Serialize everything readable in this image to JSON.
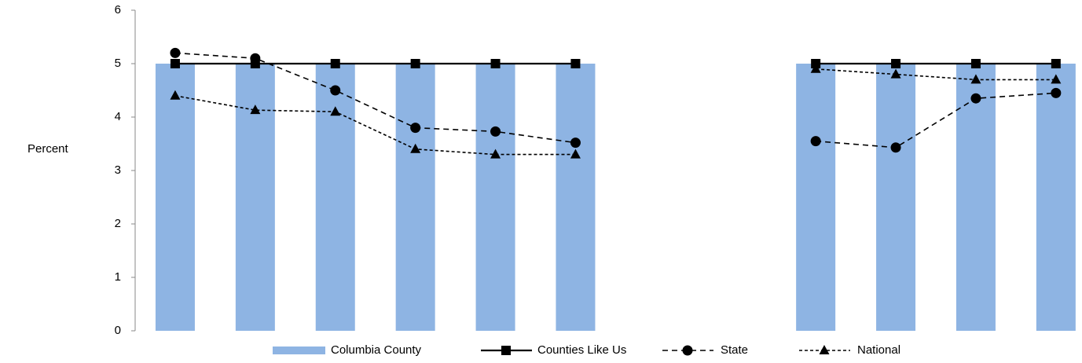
{
  "chart_data": {
    "type": "bar-line",
    "y_label": "Percent",
    "categories": [
      null,
      null,
      null,
      null,
      null,
      null,
      null,
      null,
      null,
      null,
      null,
      null
    ],
    "series": [
      {
        "name": "Columbia County",
        "type": "bar",
        "color": "#8eb4e3",
        "values": [
          5,
          5,
          5,
          5,
          5,
          5,
          null,
          null,
          5,
          5,
          5,
          5
        ]
      },
      {
        "name": "Counties Like Us",
        "type": "line",
        "color": "#000000",
        "dash": "solid",
        "marker": "square",
        "values": [
          5,
          5,
          5,
          5,
          5,
          5,
          null,
          null,
          5,
          5,
          5,
          5
        ]
      },
      {
        "name": "State",
        "type": "line",
        "color": "#000000",
        "dash": "dashed",
        "marker": "circle",
        "values": [
          5.2,
          5.1,
          4.5,
          3.8,
          3.73,
          3.52,
          null,
          null,
          3.55,
          3.43,
          4.35,
          4.45
        ]
      },
      {
        "name": "National",
        "type": "line",
        "color": "#000000",
        "dash": "dotted",
        "marker": "triangle",
        "values": [
          4.4,
          4.13,
          4.1,
          3.4,
          3.3,
          3.3,
          null,
          null,
          4.9,
          4.8,
          4.7,
          4.7
        ]
      }
    ],
    "ylim": [
      0,
      6
    ],
    "yticks": [
      0,
      1,
      2,
      3,
      4,
      5,
      6
    ],
    "grid": false,
    "legend": "bottom"
  }
}
